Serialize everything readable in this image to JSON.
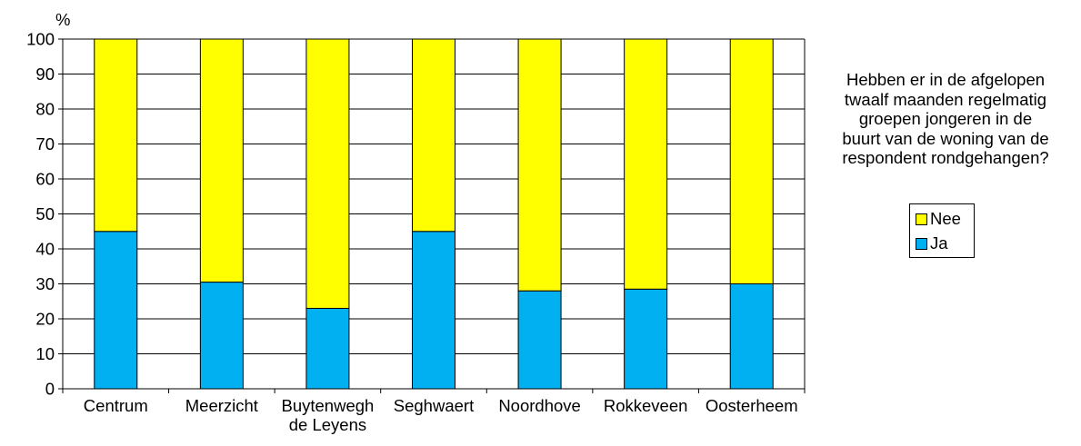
{
  "chart_data": {
    "type": "bar",
    "stacked": true,
    "y_unit_label": "%",
    "categories": [
      "Centrum",
      "Meerzicht",
      "Buytenwegh de Leyens",
      "Seghwaert",
      "Noordhove",
      "Rokkeveen",
      "Oosterheem"
    ],
    "category_label_lines": [
      [
        "Centrum"
      ],
      [
        "Meerzicht"
      ],
      [
        "Buytenwegh",
        "de Leyens"
      ],
      [
        "Seghwaert"
      ],
      [
        "Noordhove"
      ],
      [
        "Rokkeveen"
      ],
      [
        "Oosterheem"
      ]
    ],
    "series": [
      {
        "name": "Ja",
        "color": "#00B0F0",
        "values": [
          45,
          30.5,
          23,
          45,
          28,
          28.5,
          30
        ]
      },
      {
        "name": "Nee",
        "color": "#FFFF00",
        "values": [
          55,
          69.5,
          77,
          55,
          72,
          71.5,
          70
        ]
      }
    ],
    "ylim": [
      0,
      100
    ],
    "yticks": [
      "0",
      "10",
      "20",
      "30",
      "40",
      "50",
      "60",
      "70",
      "80",
      "90",
      "100"
    ],
    "grid": true,
    "legend_position": "right",
    "legend_title": "Hebben er in de afgelopen\ntwaalf maanden regelmatig\ngroepen jongeren in de\nbuurt van de woning van de\nrespondent rondgehangen?"
  },
  "legend": {
    "title": "Hebben er in de afgelopen\ntwaalf maanden regelmatig\ngroepen jongeren in de\nbuurt van de woning van de\nrespondent rondgehangen?",
    "items": [
      {
        "label": "Nee",
        "color": "#FFFF00"
      },
      {
        "label": "Ja",
        "color": "#00B0F0"
      }
    ]
  }
}
